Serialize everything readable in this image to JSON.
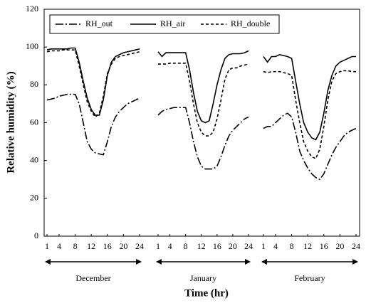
{
  "chart_data": {
    "type": "line",
    "ylabel": "Relative humidity (%)",
    "xlabel": "Time (hr)",
    "ylim": [
      0,
      120
    ],
    "yticks": [
      0,
      20,
      40,
      60,
      80,
      100,
      120
    ],
    "x": [
      1,
      2,
      3,
      4,
      5,
      6,
      7,
      8,
      9,
      10,
      11,
      12,
      13,
      14,
      15,
      16,
      17,
      18,
      19,
      20,
      21,
      22,
      23,
      24
    ],
    "xlim": [
      1,
      24
    ],
    "xticks": [
      1,
      4,
      8,
      12,
      16,
      20,
      24
    ],
    "panels": [
      "December",
      "January",
      "February"
    ],
    "legend": "top-left",
    "series": [
      {
        "name": "RH_out",
        "color": "#000000",
        "dash": "11,3,2,3",
        "values": [
          [
            72,
            72.5,
            73,
            74,
            74.5,
            75,
            75,
            75,
            70,
            60,
            50,
            46,
            44,
            43.5,
            43,
            50,
            58,
            63,
            66,
            68,
            70,
            71,
            72,
            73
          ],
          [
            64,
            66,
            67,
            67.5,
            68,
            68,
            68,
            68,
            60,
            50,
            42,
            37,
            35.5,
            35.5,
            35.5,
            37,
            42,
            48,
            53,
            56,
            58,
            60,
            62,
            63
          ],
          [
            57,
            58,
            58,
            60,
            62,
            64,
            65,
            63,
            55,
            45,
            40,
            36,
            33,
            31,
            30,
            33,
            38,
            43,
            47,
            50,
            53,
            55,
            56,
            57
          ]
        ]
      },
      {
        "name": "RH_air",
        "color": "#000000",
        "dash": "none",
        "values": [
          [
            98.5,
            99,
            99,
            99,
            99,
            99,
            99.5,
            99.5,
            92,
            82,
            73,
            67,
            64,
            64,
            72,
            85,
            92,
            95,
            96,
            97,
            97.5,
            98,
            98.5,
            99
          ],
          [
            97.5,
            95,
            97,
            97,
            97,
            97,
            97,
            97,
            88,
            76,
            66,
            61,
            60,
            61,
            70,
            80,
            88,
            94,
            96,
            96.5,
            96.5,
            96.5,
            97,
            98
          ],
          [
            95,
            92,
            95,
            95,
            96,
            95.5,
            95,
            94,
            82,
            70,
            60,
            55,
            52,
            51,
            55,
            65,
            77,
            85,
            90,
            92,
            93,
            94,
            95,
            95
          ]
        ]
      },
      {
        "name": "RH_double",
        "color": "#000000",
        "dash": "4,3",
        "values": [
          [
            97.5,
            98,
            98,
            98,
            98.5,
            98.5,
            98.5,
            98.5,
            90,
            80,
            71,
            66,
            63,
            65,
            74,
            86,
            91,
            94,
            95,
            95.5,
            96,
            96.5,
            97,
            97.5
          ],
          [
            91,
            91,
            91,
            91.5,
            91.5,
            91.5,
            91.5,
            91.5,
            82,
            70,
            60,
            55,
            53,
            53,
            55,
            62,
            72,
            83,
            88,
            89,
            89,
            90,
            90.5,
            91
          ],
          [
            87,
            86.5,
            87,
            87,
            87,
            86.5,
            86,
            85,
            72,
            60,
            50,
            45,
            42,
            41,
            46,
            58,
            72,
            82,
            86,
            87,
            87.5,
            87.5,
            87,
            87
          ]
        ]
      }
    ]
  }
}
